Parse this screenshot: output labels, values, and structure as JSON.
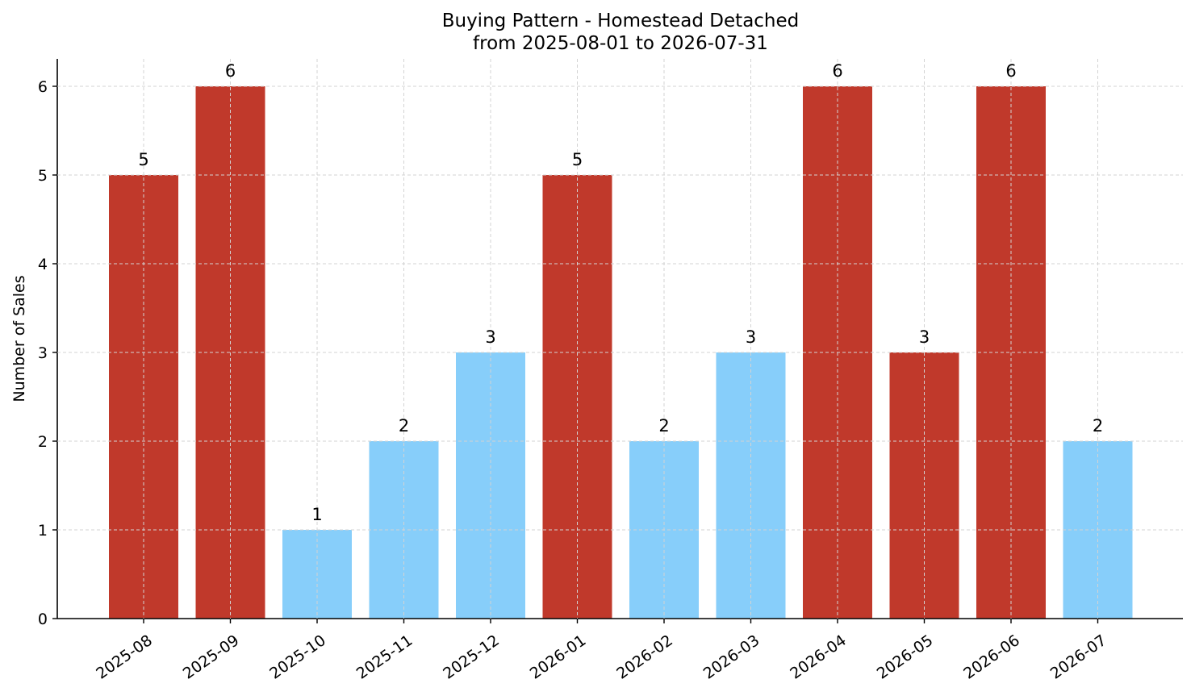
{
  "chart_data": {
    "type": "bar",
    "title_line1": "Buying Pattern - Homestead Detached",
    "title_line2": "from 2025-08-01 to 2026-07-31",
    "xlabel": "",
    "ylabel": "Number of Sales",
    "categories": [
      "2025-08",
      "2025-09",
      "2025-10",
      "2025-11",
      "2025-12",
      "2026-01",
      "2026-02",
      "2026-03",
      "2026-04",
      "2026-05",
      "2026-06",
      "2026-07"
    ],
    "values": [
      5,
      6,
      1,
      2,
      3,
      5,
      2,
      3,
      6,
      3,
      6,
      2
    ],
    "bar_colors": [
      "#c0392b",
      "#c0392b",
      "#87cefa",
      "#87cefa",
      "#87cefa",
      "#c0392b",
      "#87cefa",
      "#87cefa",
      "#c0392b",
      "#c0392b",
      "#c0392b",
      "#87cefa"
    ],
    "ylim": [
      0,
      6.3
    ],
    "yticks": [
      0,
      1,
      2,
      3,
      4,
      5,
      6
    ],
    "grid": true
  }
}
